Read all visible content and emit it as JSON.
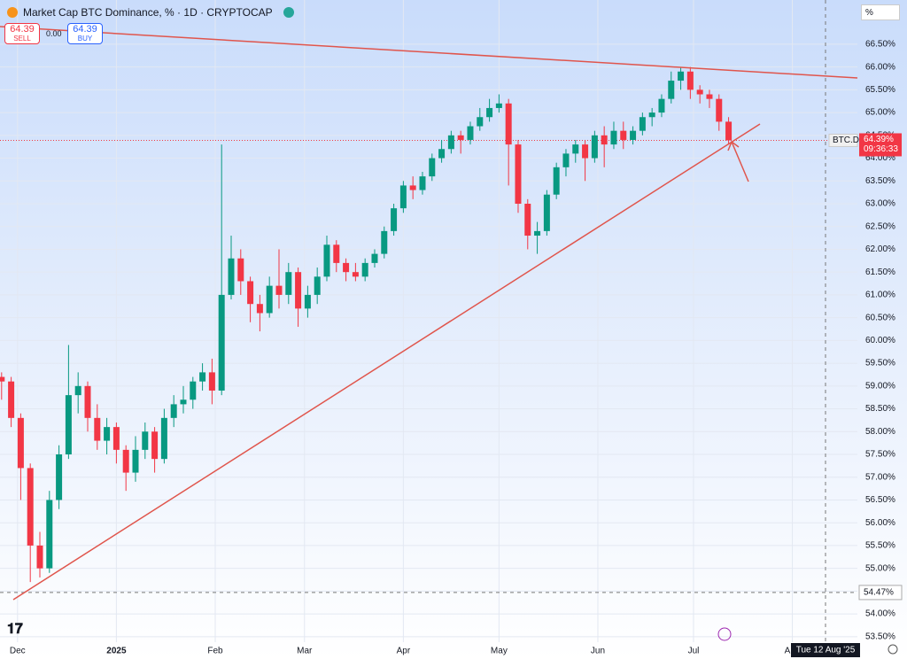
{
  "chart_data": {
    "type": "candlestick",
    "title": "Market Cap BTC Dominance, % · 1D · CRYPTOCAP",
    "sell_price": "64.39",
    "sell_label": "SELL",
    "spread": "0.00",
    "buy_price": "64.39",
    "buy_label": "BUY",
    "scale_button": "%",
    "symbol": "BTC.D",
    "last": {
      "value": 64.39,
      "label": "64.39%"
    },
    "countdown": "09:36:33",
    "crosshair": {
      "value": 54.47,
      "label": "54.47%"
    },
    "crosshair_date": "Tue 12 Aug '25",
    "up_color": "#089981",
    "down_color": "#f23645",
    "x": [
      0,
      3,
      6,
      9,
      12,
      15,
      18,
      21,
      24,
      27,
      30,
      33,
      36,
      39,
      42,
      45,
      48,
      51,
      54,
      57,
      60,
      63,
      66,
      69,
      72,
      75,
      78,
      81,
      84,
      87,
      90,
      93,
      96,
      99,
      102,
      105,
      108,
      111,
      114,
      117,
      120,
      123,
      126,
      129,
      132,
      135,
      138,
      141,
      144,
      147,
      150,
      153,
      156,
      159,
      162,
      165,
      168,
      171,
      174,
      177,
      180,
      183,
      186,
      189,
      192,
      195,
      198,
      201,
      204,
      207,
      210,
      213,
      216,
      219,
      222,
      225,
      228
    ],
    "open": [
      59.2,
      59.1,
      58.3,
      57.2,
      55.5,
      55.0,
      56.5,
      57.5,
      58.8,
      59.0,
      58.3,
      57.8,
      58.1,
      57.6,
      57.1,
      57.6,
      58.0,
      57.4,
      58.3,
      58.6,
      58.7,
      59.1,
      59.3,
      58.9,
      61.0,
      61.8,
      61.3,
      60.8,
      60.6,
      61.2,
      61.0,
      61.5,
      60.7,
      61.0,
      61.4,
      62.1,
      61.7,
      61.5,
      61.4,
      61.7,
      61.9,
      62.4,
      62.9,
      63.4,
      63.3,
      63.6,
      64.0,
      64.2,
      64.5,
      64.4,
      64.7,
      64.9,
      65.1,
      65.2,
      64.3,
      63.0,
      62.3,
      62.4,
      63.2,
      63.8,
      64.1,
      64.3,
      64.0,
      64.5,
      64.3,
      64.6,
      64.4,
      64.6,
      64.9,
      65.0,
      65.3,
      65.7,
      65.9,
      65.5,
      65.4,
      65.3,
      64.8
    ],
    "high": [
      59.3,
      59.2,
      58.4,
      57.3,
      55.8,
      56.7,
      57.7,
      59.9,
      59.3,
      59.1,
      58.6,
      58.3,
      58.2,
      57.7,
      57.9,
      58.2,
      58.1,
      58.5,
      58.8,
      59.0,
      59.2,
      59.5,
      59.6,
      64.3,
      62.3,
      62.0,
      61.4,
      61.0,
      61.4,
      62.0,
      61.7,
      61.6,
      61.2,
      61.6,
      62.3,
      62.2,
      61.8,
      61.7,
      61.8,
      62.0,
      62.5,
      63.0,
      63.5,
      63.6,
      63.7,
      64.1,
      64.4,
      64.6,
      64.6,
      64.8,
      65.1,
      65.3,
      65.4,
      65.3,
      64.4,
      63.1,
      62.6,
      63.3,
      63.9,
      64.2,
      64.4,
      64.4,
      64.6,
      64.7,
      64.8,
      64.8,
      64.7,
      65.0,
      65.1,
      65.4,
      65.9,
      66.0,
      66.0,
      65.6,
      65.5,
      65.4,
      64.9
    ],
    "low": [
      58.7,
      58.1,
      56.5,
      54.7,
      54.8,
      54.9,
      56.3,
      57.4,
      58.4,
      58.0,
      57.6,
      57.5,
      57.3,
      56.7,
      56.9,
      57.4,
      57.1,
      57.3,
      58.1,
      58.4,
      58.5,
      58.9,
      58.6,
      58.8,
      60.9,
      61.0,
      60.4,
      60.2,
      60.5,
      60.7,
      60.8,
      60.3,
      60.5,
      60.8,
      61.3,
      61.5,
      61.3,
      61.3,
      61.3,
      61.6,
      61.8,
      62.3,
      62.8,
      63.1,
      63.2,
      63.5,
      63.9,
      64.1,
      64.1,
      64.3,
      64.6,
      64.8,
      65.0,
      63.4,
      62.8,
      62.0,
      61.9,
      62.3,
      63.1,
      63.6,
      63.9,
      63.5,
      63.9,
      63.8,
      64.2,
      64.2,
      64.3,
      64.5,
      64.7,
      64.9,
      65.2,
      65.5,
      65.3,
      65.2,
      65.1,
      64.6,
      64.3
    ],
    "close": [
      59.1,
      58.3,
      57.2,
      55.5,
      55.0,
      56.5,
      57.5,
      58.8,
      59.0,
      58.3,
      57.8,
      58.1,
      57.6,
      57.1,
      57.6,
      58.0,
      57.4,
      58.3,
      58.6,
      58.7,
      59.1,
      59.3,
      58.9,
      61.0,
      61.8,
      61.3,
      60.8,
      60.6,
      61.2,
      61.0,
      61.5,
      60.7,
      61.0,
      61.4,
      62.1,
      61.7,
      61.5,
      61.4,
      61.7,
      61.9,
      62.4,
      62.9,
      63.4,
      63.3,
      63.6,
      64.0,
      64.2,
      64.5,
      64.4,
      64.7,
      64.9,
      65.1,
      65.2,
      64.3,
      63.0,
      62.3,
      62.4,
      63.2,
      63.8,
      64.1,
      64.3,
      64.0,
      64.5,
      64.3,
      64.6,
      64.4,
      64.6,
      64.9,
      65.0,
      65.3,
      65.7,
      65.9,
      65.5,
      65.4,
      65.3,
      64.8,
      64.39
    ],
    "xlim": [
      -0.5,
      268.4
    ],
    "ylim": [
      53.38,
      67.47
    ],
    "xticks": [
      {
        "value": 5,
        "label": "Dec"
      },
      {
        "value": 36,
        "label": "2025"
      },
      {
        "value": 67,
        "label": "Feb"
      },
      {
        "value": 95,
        "label": "Mar"
      },
      {
        "value": 126,
        "label": "Apr"
      },
      {
        "value": 156,
        "label": "May"
      },
      {
        "value": 187,
        "label": "Jun"
      },
      {
        "value": 217,
        "label": "Jul"
      },
      {
        "value": 248,
        "label": "Aug"
      }
    ],
    "yticks": [
      {
        "value": 53.5,
        "label": "53.50%"
      },
      {
        "value": 54,
        "label": "54.00%"
      },
      {
        "value": 54.5,
        "label": "54.50%"
      },
      {
        "value": 55,
        "label": "55.00%"
      },
      {
        "value": 55.5,
        "label": "55.50%"
      },
      {
        "value": 56,
        "label": "56.00%"
      },
      {
        "value": 56.5,
        "label": "56.50%"
      },
      {
        "value": 57,
        "label": "57.00%"
      },
      {
        "value": 57.5,
        "label": "57.50%"
      },
      {
        "value": 58,
        "label": "58.00%"
      },
      {
        "value": 58.5,
        "label": "58.50%"
      },
      {
        "value": 59,
        "label": "59.00%"
      },
      {
        "value": 59.5,
        "label": "59.50%"
      },
      {
        "value": 60,
        "label": "60.00%"
      },
      {
        "value": 60.5,
        "label": "60.50%"
      },
      {
        "value": 61,
        "label": "61.00%"
      },
      {
        "value": 61.5,
        "label": "61.50%"
      },
      {
        "value": 62,
        "label": "62.00%"
      },
      {
        "value": 62.5,
        "label": "62.50%"
      },
      {
        "value": 63,
        "label": "63.00%"
      },
      {
        "value": 63.5,
        "label": "63.50%"
      },
      {
        "value": 64,
        "label": "64.00%"
      },
      {
        "value": 64.5,
        "label": "64.50%"
      },
      {
        "value": 65,
        "label": "65.00%"
      },
      {
        "value": 65.5,
        "label": "65.50%"
      },
      {
        "value": 66,
        "label": "66.00%"
      },
      {
        "value": 66.5,
        "label": "66.50%"
      }
    ],
    "grid": true
  }
}
